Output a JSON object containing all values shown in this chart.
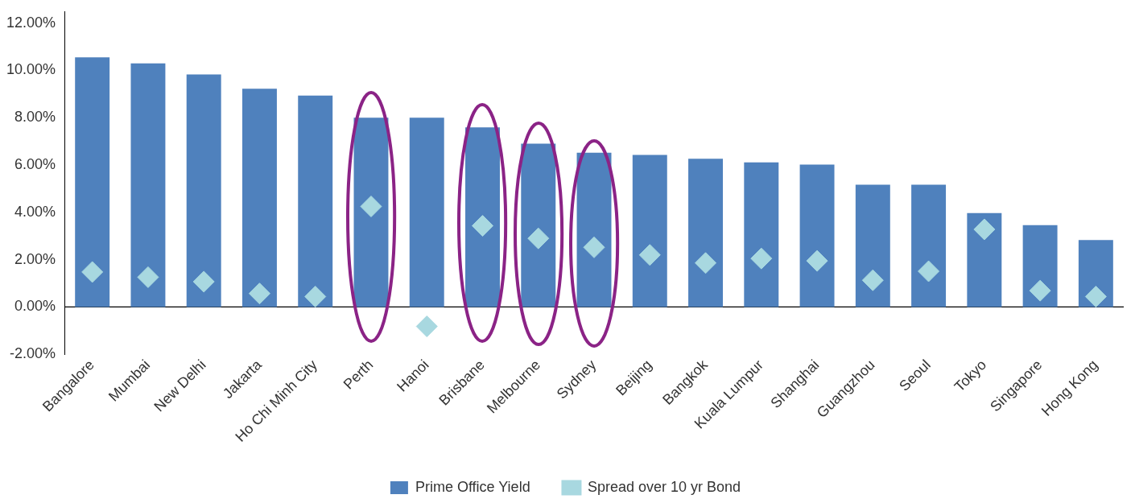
{
  "chart_data": {
    "type": "bar",
    "categories": [
      "Bangalore",
      "Mumbai",
      "New Delhi",
      "Jakarta",
      "Ho Chi Minh City",
      "Perth",
      "Hanoi",
      "Brisbane",
      "Melbourne",
      "Sydney",
      "Beijing",
      "Bangkok",
      "Kuala Lumpur",
      "Shanghai",
      "Guangzhou",
      "Seoul",
      "Tokyo",
      "Singapore",
      "Hong Kong"
    ],
    "series": [
      {
        "name": "Prime Office Yield",
        "color": "#4f81bd",
        "values": [
          10.55,
          10.3,
          9.83,
          9.23,
          8.94,
          8.0,
          8.0,
          7.59,
          6.9,
          6.52,
          6.43,
          6.27,
          6.11,
          6.02,
          5.17,
          5.17,
          3.97,
          3.46,
          2.83
        ]
      },
      {
        "name": "Spread over 10 yr Bond",
        "type": "scatter",
        "marker": "diamond",
        "color": "#a8d8e0",
        "x": [
          "Bangalore",
          "Mumbai",
          "New Delhi",
          "Jakarta",
          "Ho Chi Minh City",
          "Perth",
          "Hanoi",
          "Brisbane",
          "Melbourne",
          "Sydney",
          "Beijing",
          "Bangkok",
          "Kuala Lumpur",
          "Shanghai",
          "Guangzhou",
          "Seoul",
          "Tokyo",
          "Singapore",
          "Hong Kong"
        ],
        "values": [
          1.48,
          1.26,
          1.07,
          0.57,
          0.44,
          4.25,
          -0.82,
          3.43,
          2.9,
          2.52,
          2.2,
          1.86,
          2.05,
          1.95,
          1.13,
          1.51,
          3.28,
          0.69,
          0.44
        ]
      }
    ],
    "ylim": [
      -2,
      12.5
    ],
    "yticks": [
      {
        "value": -2,
        "label": "-2.00%"
      },
      {
        "value": 0,
        "label": "0.00%"
      },
      {
        "value": 2,
        "label": "2.00%"
      },
      {
        "value": 4,
        "label": "4.00%"
      },
      {
        "value": 6,
        "label": "6.00%"
      },
      {
        "value": 8,
        "label": "8.00%"
      },
      {
        "value": 10,
        "label": "10.00%"
      },
      {
        "value": 12,
        "label": "12.00%"
      }
    ],
    "ref_lines": [
      {
        "axis": "y",
        "value": 0,
        "color": "#000000"
      }
    ],
    "grid": false,
    "legend": "bottom"
  }
}
